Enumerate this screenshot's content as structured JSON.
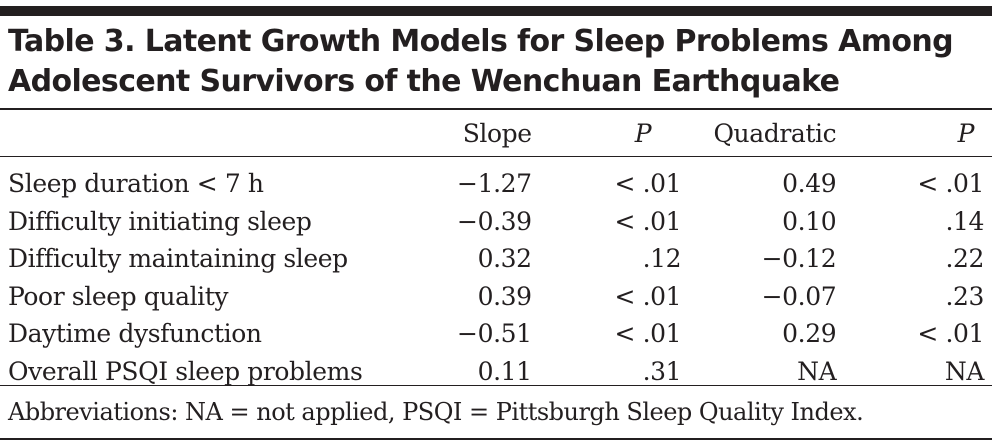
{
  "title_line1": "Table 3. Latent Growth Models for Sleep Problems Among",
  "title_line2": "Adolescent Survivors of the Wenchuan Earthquake",
  "headers": {
    "label": "",
    "slope": "Slope",
    "p1": "P",
    "quadratic": "Quadratic",
    "p2": "P"
  },
  "rows": [
    {
      "label": "Sleep duration < 7 h",
      "slope": "−1.27",
      "p1": "< .01",
      "quadratic": "0.49",
      "p2": "< .01"
    },
    {
      "label": "Difficulty initiating sleep",
      "slope": "−0.39",
      "p1": "< .01",
      "quadratic": "0.10",
      "p2": ".14"
    },
    {
      "label": "Difficulty maintaining sleep",
      "slope": "0.32",
      "p1": ".12",
      "quadratic": "−0.12",
      "p2": ".22"
    },
    {
      "label": "Poor sleep quality",
      "slope": "0.39",
      "p1": "< .01",
      "quadratic": "−0.07",
      "p2": ".23"
    },
    {
      "label": "Daytime dysfunction",
      "slope": "−0.51",
      "p1": "< .01",
      "quadratic": "0.29",
      "p2": "< .01"
    },
    {
      "label": "Overall PSQI sleep problems",
      "slope": "0.11",
      "p1": ".31",
      "quadratic": "NA",
      "p2": "NA"
    }
  ],
  "footnote": "Abbreviations: NA = not applied, PSQI = Pittsburgh Sleep Quality Index."
}
